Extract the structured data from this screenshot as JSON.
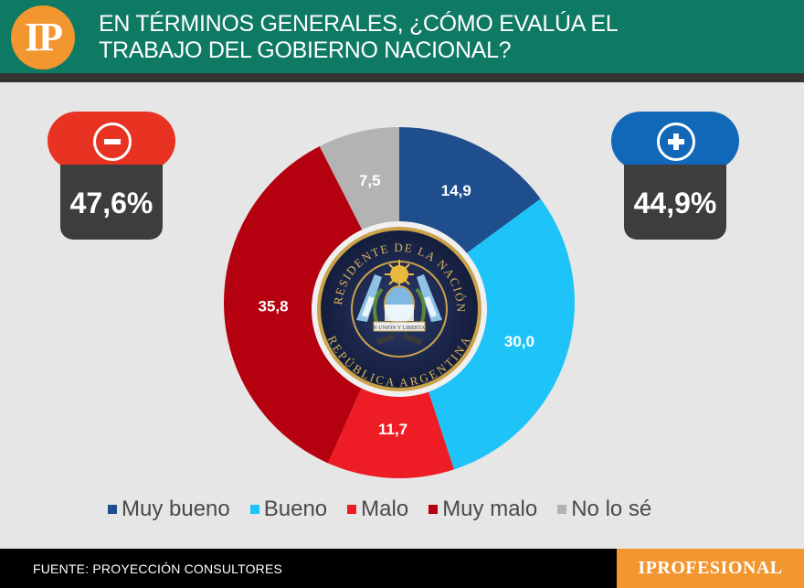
{
  "header": {
    "logo": "IP",
    "title_lines": [
      "EN TÉRMINOS GENERALES, ¿CÓMO EVALÚA EL",
      "TRABAJO DEL GOBIERNO NACIONAL?"
    ]
  },
  "summary": {
    "negative": {
      "sign": "-",
      "value": "47,6%",
      "color": "#e83323"
    },
    "positive": {
      "sign": "+",
      "value": "44,9%",
      "color": "#1168b8"
    }
  },
  "chart_data": {
    "type": "donut",
    "title": "EN TÉRMINOS GENERALES, ¿CÓMO EVALÚA EL TRABAJO DEL GOBIERNO NACIONAL?",
    "categories": [
      "Muy bueno",
      "Bueno",
      "Malo",
      "Muy malo",
      "No lo sé"
    ],
    "values": [
      14.9,
      30.0,
      11.7,
      35.8,
      7.5
    ],
    "labels": [
      "14,9",
      "30,0",
      "11,7",
      "35,8",
      "7,5"
    ],
    "colors": [
      "#1f4e8c",
      "#1ec4f8",
      "#ee1c24",
      "#b5000f",
      "#b3b3b3"
    ],
    "legend_position": "bottom"
  },
  "seal": {
    "top_text": "PRESIDENTE DE LA NACIÓN",
    "bottom_text": "REPÚBLICA ARGENTINA",
    "ribbon": "EN UNIÓN Y LIBERTAD"
  },
  "footer": {
    "source": "FUENTE: PROYECCIÓN CONSULTORES",
    "brand": "IPROFESIONAL"
  }
}
